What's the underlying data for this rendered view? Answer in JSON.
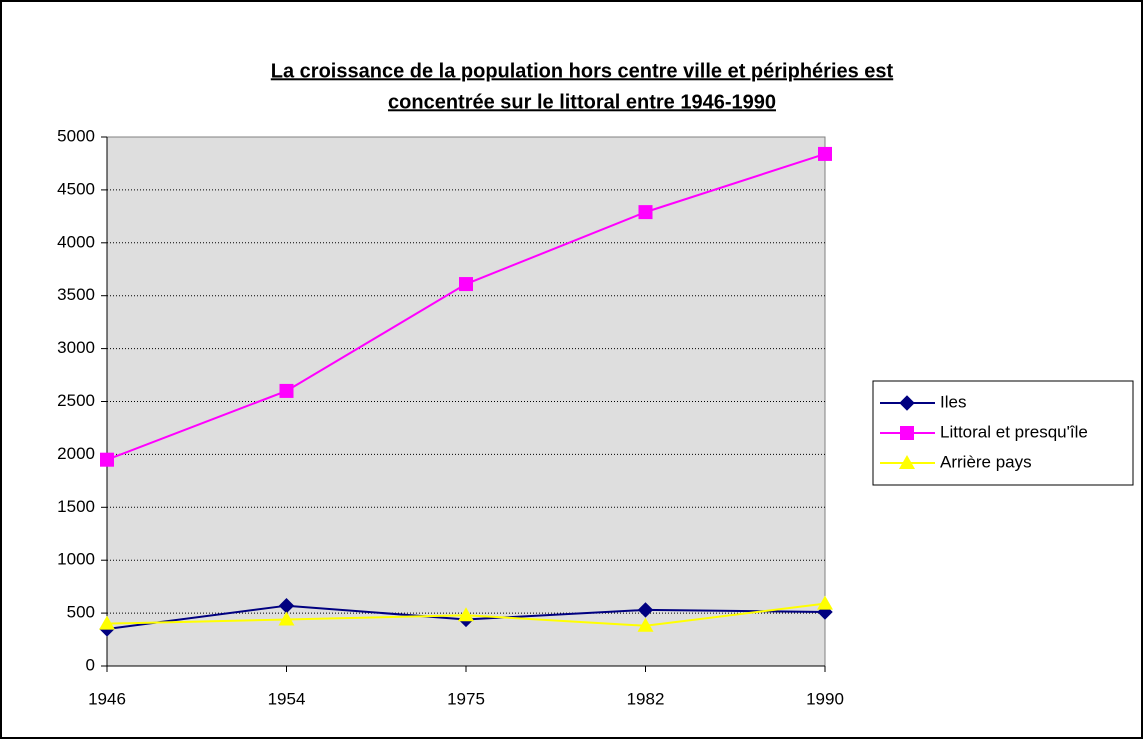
{
  "chart_data": {
    "type": "line",
    "title": [
      "La croissance de la population hors centre ville et périphéries est",
      "concentrée sur le littoral entre 1946-1990"
    ],
    "categories": [
      "1946",
      "1954",
      "1975",
      "1982",
      "1990"
    ],
    "series": [
      {
        "name": "Iles",
        "color": "#000080",
        "marker": "diamond",
        "values": [
          350,
          570,
          440,
          530,
          510
        ]
      },
      {
        "name": "Littoral et presqu'île",
        "color": "#ff00ff",
        "marker": "square",
        "values": [
          1950,
          2600,
          3610,
          4290,
          4840
        ]
      },
      {
        "name": "Arrière pays",
        "color": "#ffff00",
        "marker": "triangle",
        "values": [
          400,
          440,
          480,
          380,
          590
        ]
      }
    ],
    "ylim": [
      0,
      5000
    ],
    "yticks": [
      0,
      500,
      1000,
      1500,
      2000,
      2500,
      3000,
      3500,
      4000,
      4500,
      5000
    ],
    "grid": true,
    "legend": "right"
  }
}
